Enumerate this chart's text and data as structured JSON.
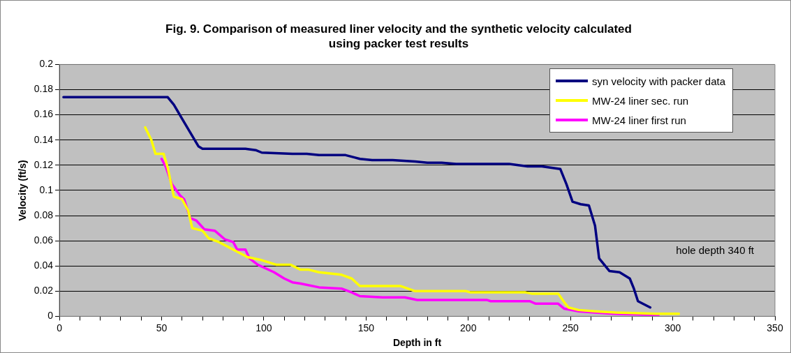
{
  "chart_data": {
    "type": "line",
    "title": "Fig. 9.  Comparison of measured liner velocity and the synthetic velocity calculated using packer test results",
    "xlabel": "Depth in ft",
    "ylabel": "Velocity (ft/s)",
    "xlim": [
      0,
      350
    ],
    "xticks": [
      0,
      {
        "value": 10,
        "label": null
      },
      {
        "value": 20,
        "label": null
      },
      {
        "value": 30,
        "label": null
      },
      {
        "value": 40,
        "label": null
      },
      50,
      {
        "value": 60,
        "label": null
      },
      {
        "value": 70,
        "label": null
      },
      {
        "value": 80,
        "label": null
      },
      {
        "value": 90,
        "label": null
      },
      100,
      {
        "value": 110,
        "label": null
      },
      {
        "value": 120,
        "label": null
      },
      {
        "value": 130,
        "label": null
      },
      {
        "value": 140,
        "label": null
      },
      150,
      {
        "value": 160,
        "label": null
      },
      {
        "value": 170,
        "label": null
      },
      {
        "value": 180,
        "label": null
      },
      {
        "value": 190,
        "label": null
      },
      200,
      {
        "value": 210,
        "label": null
      },
      {
        "value": 220,
        "label": null
      },
      {
        "value": 230,
        "label": null
      },
      {
        "value": 240,
        "label": null
      },
      250,
      {
        "value": 260,
        "label": null
      },
      {
        "value": 270,
        "label": null
      },
      {
        "value": 280,
        "label": null
      },
      {
        "value": 290,
        "label": null
      },
      300,
      {
        "value": 310,
        "label": null
      },
      {
        "value": 320,
        "label": null
      },
      {
        "value": 330,
        "label": null
      },
      {
        "value": 340,
        "label": null
      },
      350
    ],
    "ylim": [
      0,
      0.2
    ],
    "yticks": [
      0,
      0.02,
      0.04,
      0.06,
      0.08,
      0.1,
      0.12,
      0.14,
      0.16,
      0.18,
      0.2
    ],
    "grid": "y",
    "legend": "top right",
    "marker": "none",
    "line_style": "solid",
    "annotations": [
      "hole depth 340 ft"
    ],
    "series": [
      {
        "name": "syn velocity with packer data",
        "color": "#000080",
        "x": [
          2,
          53,
          56,
          60,
          64,
          68,
          70,
          91,
          96,
          99,
          114,
          121,
          127,
          140,
          147,
          153,
          163,
          174,
          180,
          187,
          194,
          220,
          229,
          236,
          245,
          248,
          251,
          255,
          259,
          262,
          264,
          269,
          274,
          279,
          281,
          283,
          289
        ],
        "values": [
          0.174,
          0.174,
          0.168,
          0.157,
          0.146,
          0.135,
          0.133,
          0.133,
          0.132,
          0.13,
          0.129,
          0.129,
          0.128,
          0.128,
          0.125,
          0.124,
          0.124,
          0.123,
          0.122,
          0.122,
          0.121,
          0.121,
          0.119,
          0.119,
          0.117,
          0.105,
          0.091,
          0.089,
          0.088,
          0.072,
          0.046,
          0.036,
          0.035,
          0.03,
          0.022,
          0.012,
          0.007
        ]
      },
      {
        "name": "MW-24 liner sec. run",
        "color": "#ffff00",
        "x": [
          42,
          45,
          47,
          51,
          53,
          56,
          60,
          63,
          65,
          70,
          73,
          78,
          85,
          92,
          98,
          106,
          113,
          118,
          122,
          127,
          138,
          143,
          147,
          151,
          167,
          174,
          199,
          201,
          228,
          231,
          244,
          247,
          249,
          254,
          262,
          272,
          292,
          303
        ],
        "values": [
          0.15,
          0.14,
          0.129,
          0.129,
          0.118,
          0.095,
          0.093,
          0.084,
          0.07,
          0.068,
          0.062,
          0.059,
          0.053,
          0.047,
          0.045,
          0.041,
          0.041,
          0.037,
          0.037,
          0.035,
          0.033,
          0.03,
          0.024,
          0.024,
          0.024,
          0.02,
          0.02,
          0.019,
          0.019,
          0.018,
          0.018,
          0.011,
          0.007,
          0.005,
          0.004,
          0.003,
          0.002,
          0.002
        ]
      },
      {
        "name": "MW-24 liner first run",
        "color": "#ff00ff",
        "x": [
          50,
          52,
          55,
          59,
          61,
          64,
          67,
          71,
          76,
          81,
          85,
          87,
          91,
          93,
          97,
          105,
          110,
          114,
          118,
          127,
          138,
          143,
          147,
          158,
          169,
          175,
          209,
          211,
          230,
          233,
          244,
          247,
          254,
          262,
          271,
          293
        ],
        "values": [
          0.125,
          0.119,
          0.105,
          0.096,
          0.093,
          0.078,
          0.076,
          0.069,
          0.068,
          0.061,
          0.059,
          0.053,
          0.053,
          0.046,
          0.041,
          0.035,
          0.03,
          0.027,
          0.026,
          0.023,
          0.022,
          0.019,
          0.016,
          0.015,
          0.015,
          0.013,
          0.013,
          0.012,
          0.012,
          0.01,
          0.01,
          0.006,
          0.004,
          0.003,
          0.002,
          0.001
        ]
      }
    ]
  }
}
